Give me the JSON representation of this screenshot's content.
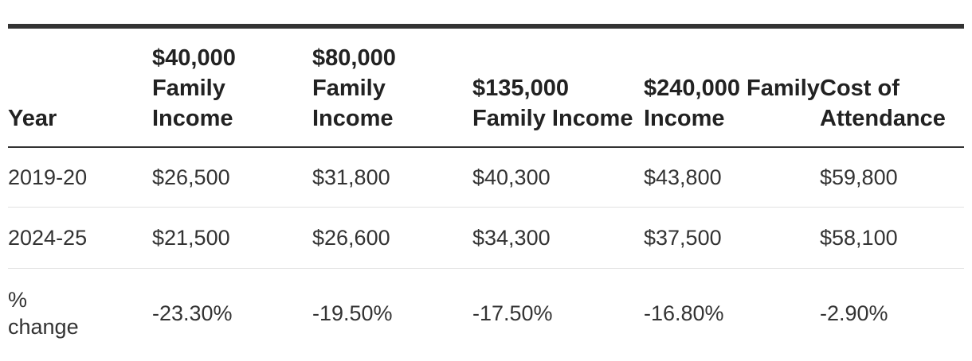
{
  "table": {
    "headers": [
      "Year",
      "$40,000 Family Income",
      "$80,000 Family Income",
      "$135,000 Family Income",
      "$240,000 Family Income",
      "Cost of Attendance"
    ],
    "rows": [
      [
        "2019-20",
        "$26,500",
        "$31,800",
        "$40,300",
        "$43,800",
        "$59,800"
      ],
      [
        "2024-25",
        "$21,500",
        "$26,600",
        "$34,300",
        "$37,500",
        "$58,100"
      ],
      [
        "% change",
        "-23.30%",
        "-19.50%",
        "-17.50%",
        "-16.80%",
        "-2.90%"
      ]
    ]
  }
}
